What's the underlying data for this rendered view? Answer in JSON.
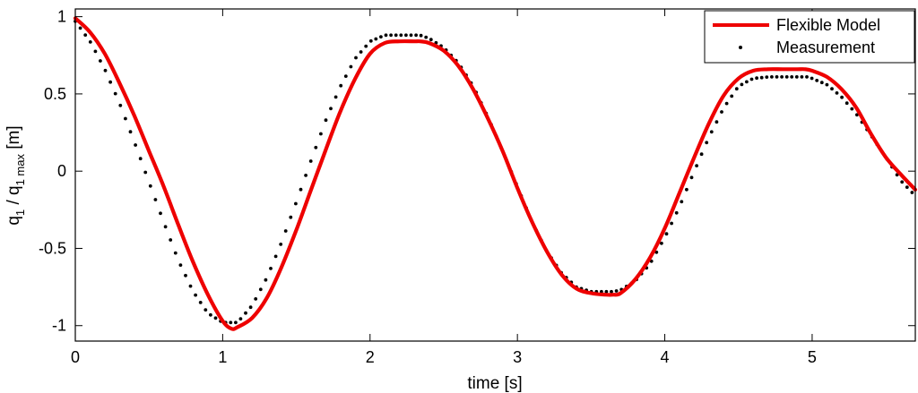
{
  "chart_data": {
    "type": "line",
    "xlabel": "time [s]",
    "ylabel": {
      "main": "q",
      "sub1": "1",
      "mid": " / q",
      "sub2": "1 max",
      "unit": " [m]"
    },
    "xlim": [
      0,
      5.7
    ],
    "ylim": [
      -1.1,
      1.05
    ],
    "xticks": [
      0,
      1,
      2,
      3,
      4,
      5
    ],
    "xtick_labels": [
      "0",
      "1",
      "2",
      "3",
      "4",
      "5"
    ],
    "yticks": [
      1,
      0.5,
      0,
      -0.5,
      -1
    ],
    "ytick_labels": [
      "1",
      "0.5",
      "0",
      "-0.5",
      "-1"
    ],
    "grid": false,
    "legend_position": "top-right",
    "series": [
      {
        "name": "Flexible Model",
        "style": "line",
        "color": "#ee0000",
        "x": [
          0,
          0.1,
          0.2,
          0.3,
          0.4,
          0.5,
          0.6,
          0.7,
          0.8,
          0.9,
          1.0,
          1.06,
          1.1,
          1.2,
          1.3,
          1.4,
          1.5,
          1.6,
          1.7,
          1.8,
          1.9,
          2.0,
          2.1,
          2.2,
          2.3,
          2.34,
          2.4,
          2.5,
          2.6,
          2.7,
          2.8,
          2.9,
          3.0,
          3.1,
          3.2,
          3.3,
          3.4,
          3.5,
          3.6,
          3.65,
          3.7,
          3.8,
          3.9,
          4.0,
          4.1,
          4.2,
          4.3,
          4.4,
          4.5,
          4.6,
          4.7,
          4.8,
          4.9,
          4.95,
          5.0,
          5.1,
          5.2,
          5.3,
          5.4,
          5.5,
          5.6,
          5.7
        ],
        "y": [
          0.99,
          0.9,
          0.76,
          0.57,
          0.36,
          0.13,
          -0.1,
          -0.35,
          -0.59,
          -0.8,
          -0.97,
          -1.02,
          -1.01,
          -0.95,
          -0.82,
          -0.62,
          -0.38,
          -0.12,
          0.14,
          0.39,
          0.6,
          0.76,
          0.83,
          0.84,
          0.84,
          0.84,
          0.83,
          0.78,
          0.68,
          0.53,
          0.34,
          0.13,
          -0.11,
          -0.33,
          -0.52,
          -0.67,
          -0.76,
          -0.79,
          -0.8,
          -0.8,
          -0.79,
          -0.7,
          -0.56,
          -0.37,
          -0.14,
          0.09,
          0.31,
          0.49,
          0.6,
          0.65,
          0.66,
          0.66,
          0.66,
          0.66,
          0.65,
          0.61,
          0.53,
          0.41,
          0.24,
          0.09,
          -0.02,
          -0.12
        ]
      },
      {
        "name": "Measurement",
        "style": "dots",
        "color": "#000000",
        "x": [
          0,
          0.1,
          0.2,
          0.3,
          0.4,
          0.5,
          0.6,
          0.7,
          0.8,
          0.9,
          1.0,
          1.1,
          1.2,
          1.3,
          1.4,
          1.5,
          1.6,
          1.7,
          1.8,
          1.9,
          2.0,
          2.1,
          2.2,
          2.3,
          2.34,
          2.4,
          2.5,
          2.6,
          2.7,
          2.8,
          2.9,
          3.0,
          3.1,
          3.2,
          3.3,
          3.4,
          3.5,
          3.6,
          3.65,
          3.7,
          3.8,
          3.9,
          4.0,
          4.1,
          4.2,
          4.3,
          4.4,
          4.5,
          4.6,
          4.7,
          4.8,
          4.9,
          4.98,
          5.0,
          5.1,
          5.2,
          5.3,
          5.4,
          5.5,
          5.6,
          5.7
        ],
        "y": [
          0.97,
          0.84,
          0.66,
          0.44,
          0.19,
          -0.07,
          -0.33,
          -0.58,
          -0.78,
          -0.92,
          -0.98,
          -0.98,
          -0.87,
          -0.69,
          -0.46,
          -0.2,
          0.07,
          0.33,
          0.55,
          0.73,
          0.84,
          0.88,
          0.88,
          0.88,
          0.88,
          0.86,
          0.8,
          0.7,
          0.55,
          0.35,
          0.13,
          -0.1,
          -0.33,
          -0.52,
          -0.66,
          -0.75,
          -0.78,
          -0.78,
          -0.78,
          -0.77,
          -0.71,
          -0.6,
          -0.43,
          -0.23,
          0.0,
          0.22,
          0.41,
          0.55,
          0.6,
          0.61,
          0.61,
          0.61,
          0.61,
          0.6,
          0.56,
          0.48,
          0.37,
          0.23,
          0.09,
          -0.06,
          -0.16
        ]
      }
    ]
  }
}
